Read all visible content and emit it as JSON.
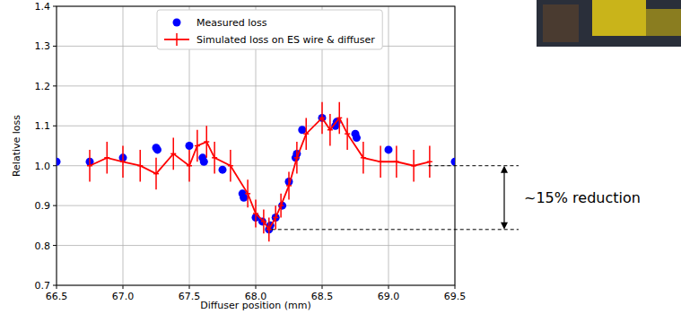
{
  "chart_data": {
    "type": "line",
    "x_label": "Diffuser position (mm)",
    "y_label": "Relative loss",
    "xlim": [
      66.5,
      69.5
    ],
    "ylim": [
      0.7,
      1.4
    ],
    "xticks": [
      66.5,
      {
        "value": 67,
        "label": "67.0"
      },
      67.5,
      {
        "value": 68,
        "label": "68.0"
      },
      68.5,
      {
        "value": 69,
        "label": "69.0"
      },
      69.5
    ],
    "yticks": [
      0.7,
      0.8,
      0.9,
      {
        "value": 1,
        "label": "1.0"
      },
      1.1,
      1.2,
      1.3,
      1.4
    ],
    "grid": true,
    "legend": "upper center",
    "series": [
      {
        "name": "Measured loss",
        "type": "scatter",
        "color": "#0000ff",
        "marker": "circle",
        "x": [
          66.5,
          66.75,
          67.0,
          67.25,
          67.26,
          67.5,
          67.6,
          67.61,
          67.75,
          67.9,
          67.91,
          68.0,
          68.05,
          68.1,
          68.11,
          68.15,
          68.2,
          68.25,
          68.3,
          68.31,
          68.35,
          68.5,
          68.6,
          68.61,
          68.75,
          68.76,
          69.0,
          69.5
        ],
        "values": [
          1.01,
          1.01,
          1.02,
          1.045,
          1.04,
          1.05,
          1.02,
          1.01,
          0.99,
          0.93,
          0.92,
          0.87,
          0.86,
          0.84,
          0.85,
          0.87,
          0.9,
          0.96,
          1.02,
          1.03,
          1.09,
          1.12,
          1.1,
          1.11,
          1.08,
          1.07,
          1.04,
          1.01
        ]
      },
      {
        "name": "Simulated loss on ES wire & diffuser",
        "type": "line",
        "color": "#ff0000",
        "marker": "plus",
        "x": [
          66.75,
          66.88,
          67.0,
          67.13,
          67.25,
          67.38,
          67.5,
          67.56,
          67.63,
          67.69,
          67.81,
          67.94,
          68.0,
          68.06,
          68.1,
          68.15,
          68.19,
          68.25,
          68.31,
          68.38,
          68.5,
          68.56,
          68.63,
          68.69,
          68.81,
          68.94,
          69.06,
          69.19,
          69.31
        ],
        "values": [
          1.0,
          1.02,
          1.01,
          1.0,
          0.98,
          1.03,
          1.0,
          1.05,
          1.06,
          1.02,
          1.0,
          0.93,
          0.88,
          0.86,
          0.84,
          0.87,
          0.9,
          0.95,
          1.02,
          1.08,
          1.12,
          1.09,
          1.12,
          1.08,
          1.02,
          1.01,
          1.01,
          1.0,
          1.01
        ],
        "errors": [
          0.04,
          0.04,
          0.04,
          0.04,
          0.04,
          0.04,
          0.04,
          0.04,
          0.04,
          0.04,
          0.04,
          0.035,
          0.035,
          0.03,
          0.03,
          0.03,
          0.03,
          0.035,
          0.04,
          0.04,
          0.04,
          0.04,
          0.04,
          0.04,
          0.04,
          0.04,
          0.04,
          0.04,
          0.04
        ]
      }
    ],
    "annotations": [
      {
        "text": "~15% reduction",
        "y_from": 1.0,
        "y_to": 0.84
      }
    ]
  }
}
